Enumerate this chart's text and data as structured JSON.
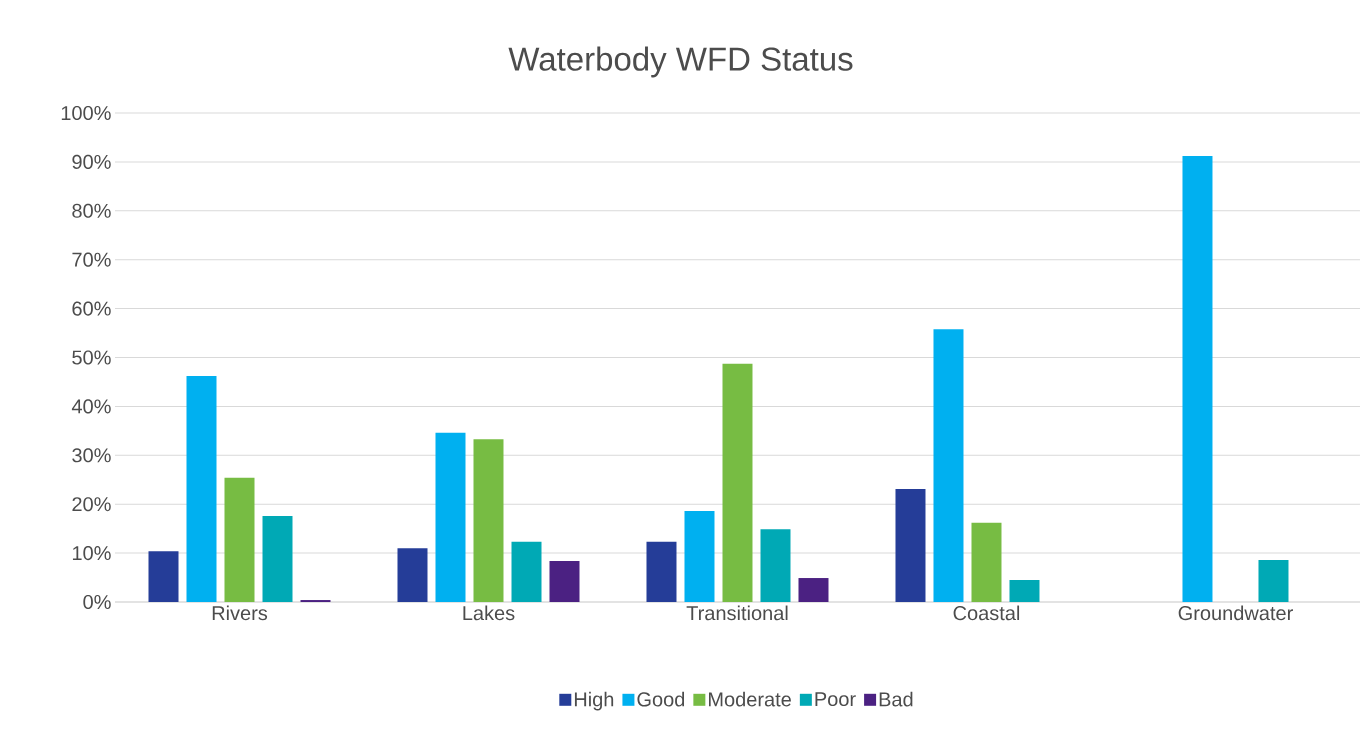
{
  "chart_data": {
    "type": "bar",
    "title": "Waterbody WFD Status",
    "categories": [
      "Rivers",
      "Lakes",
      "Transitional",
      "Coastal",
      "Groundwater"
    ],
    "series": [
      {
        "name": "High",
        "color": "#253d98",
        "values": [
          10.4,
          11.0,
          12.3,
          23.1,
          null
        ]
      },
      {
        "name": "Good",
        "color": "#00b0f0",
        "values": [
          46.2,
          34.6,
          18.6,
          55.8,
          91.2
        ]
      },
      {
        "name": "Moderate",
        "color": "#77bc43",
        "values": [
          25.4,
          33.3,
          48.7,
          16.2,
          null
        ]
      },
      {
        "name": "Poor",
        "color": "#00a9b5",
        "values": [
          17.6,
          12.3,
          14.9,
          4.5,
          8.6
        ]
      },
      {
        "name": "Bad",
        "color": "#4b2182",
        "values": [
          0.4,
          8.4,
          4.9,
          null,
          null
        ]
      }
    ],
    "ylim": [
      0,
      100
    ],
    "yticks": [
      {
        "value": 0,
        "label": "0%"
      },
      {
        "value": 10,
        "label": "10%"
      },
      {
        "value": 20,
        "label": "20%"
      },
      {
        "value": 30,
        "label": "30%"
      },
      {
        "value": 40,
        "label": "40%"
      },
      {
        "value": 50,
        "label": "50%"
      },
      {
        "value": 60,
        "label": "60%"
      },
      {
        "value": 70,
        "label": "70%"
      },
      {
        "value": 80,
        "label": "80%"
      },
      {
        "value": 90,
        "label": "90%"
      },
      {
        "value": 100,
        "label": "100%"
      }
    ],
    "grid": "y",
    "legend": "bottom"
  }
}
